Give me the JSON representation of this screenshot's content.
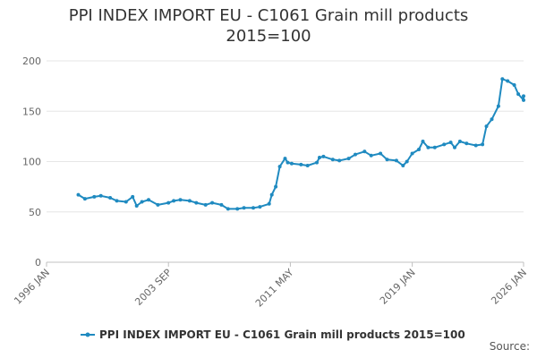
{
  "chart_data": {
    "type": "line",
    "title": "PPI INDEX IMPORT EU - C1061 Grain mill products",
    "subtitle": "2015=100",
    "xlabel": "",
    "ylabel": "",
    "x_range": [
      "1996-01",
      "2026-01"
    ],
    "ylim": [
      0,
      200
    ],
    "y_ticks": [
      0,
      50,
      100,
      150,
      200
    ],
    "x_ticks": [
      {
        "date": "1996-01",
        "label": "1996 JAN"
      },
      {
        "date": "2003-09",
        "label": "2003 SEP"
      },
      {
        "date": "2011-05",
        "label": "2011 MAY"
      },
      {
        "date": "2019-01",
        "label": "2019 JAN"
      },
      {
        "date": "2026-01",
        "label": "2026 JAN"
      }
    ],
    "grid": true,
    "legend": "bottom",
    "series": [
      {
        "name": "PPI INDEX IMPORT EU - C1061 Grain mill products 2015=100",
        "color": "#1f8ac0",
        "points": [
          [
            "1998-01",
            67
          ],
          [
            "1998-06",
            63
          ],
          [
            "1999-01",
            65
          ],
          [
            "1999-06",
            66
          ],
          [
            "2000-01",
            64
          ],
          [
            "2000-06",
            61
          ],
          [
            "2001-01",
            60
          ],
          [
            "2001-06",
            65
          ],
          [
            "2001-09",
            56
          ],
          [
            "2002-01",
            60
          ],
          [
            "2002-06",
            62
          ],
          [
            "2003-01",
            57
          ],
          [
            "2003-09",
            59
          ],
          [
            "2004-01",
            61
          ],
          [
            "2004-06",
            62
          ],
          [
            "2005-01",
            61
          ],
          [
            "2005-06",
            59
          ],
          [
            "2006-01",
            57
          ],
          [
            "2006-06",
            59
          ],
          [
            "2007-01",
            57
          ],
          [
            "2007-06",
            53
          ],
          [
            "2008-01",
            53
          ],
          [
            "2008-06",
            54
          ],
          [
            "2009-01",
            54
          ],
          [
            "2009-06",
            55
          ],
          [
            "2010-01",
            58
          ],
          [
            "2010-03",
            67
          ],
          [
            "2010-06",
            75
          ],
          [
            "2010-09",
            95
          ],
          [
            "2011-01",
            103
          ],
          [
            "2011-03",
            99
          ],
          [
            "2011-06",
            98
          ],
          [
            "2012-01",
            97
          ],
          [
            "2012-06",
            96
          ],
          [
            "2013-01",
            99
          ],
          [
            "2013-03",
            104
          ],
          [
            "2013-06",
            105
          ],
          [
            "2014-01",
            102
          ],
          [
            "2014-06",
            101
          ],
          [
            "2015-01",
            103
          ],
          [
            "2015-06",
            107
          ],
          [
            "2016-01",
            110
          ],
          [
            "2016-06",
            106
          ],
          [
            "2017-01",
            108
          ],
          [
            "2017-06",
            102
          ],
          [
            "2018-01",
            101
          ],
          [
            "2018-06",
            96
          ],
          [
            "2018-09",
            100
          ],
          [
            "2019-01",
            108
          ],
          [
            "2019-06",
            112
          ],
          [
            "2019-09",
            120
          ],
          [
            "2020-01",
            114
          ],
          [
            "2020-06",
            114
          ],
          [
            "2021-01",
            117
          ],
          [
            "2021-06",
            119
          ],
          [
            "2021-09",
            114
          ],
          [
            "2022-01",
            120
          ],
          [
            "2022-06",
            118
          ],
          [
            "2023-01",
            116
          ],
          [
            "2023-06",
            117
          ],
          [
            "2023-09",
            135
          ],
          [
            "2024-01",
            142
          ],
          [
            "2024-06",
            155
          ],
          [
            "2024-09",
            182
          ],
          [
            "2025-01",
            180
          ],
          [
            "2025-06",
            176
          ],
          [
            "2025-09",
            167
          ],
          [
            "2026-01",
            161
          ],
          [
            "2026-01",
            165
          ]
        ]
      }
    ]
  },
  "source_label": "Source:"
}
